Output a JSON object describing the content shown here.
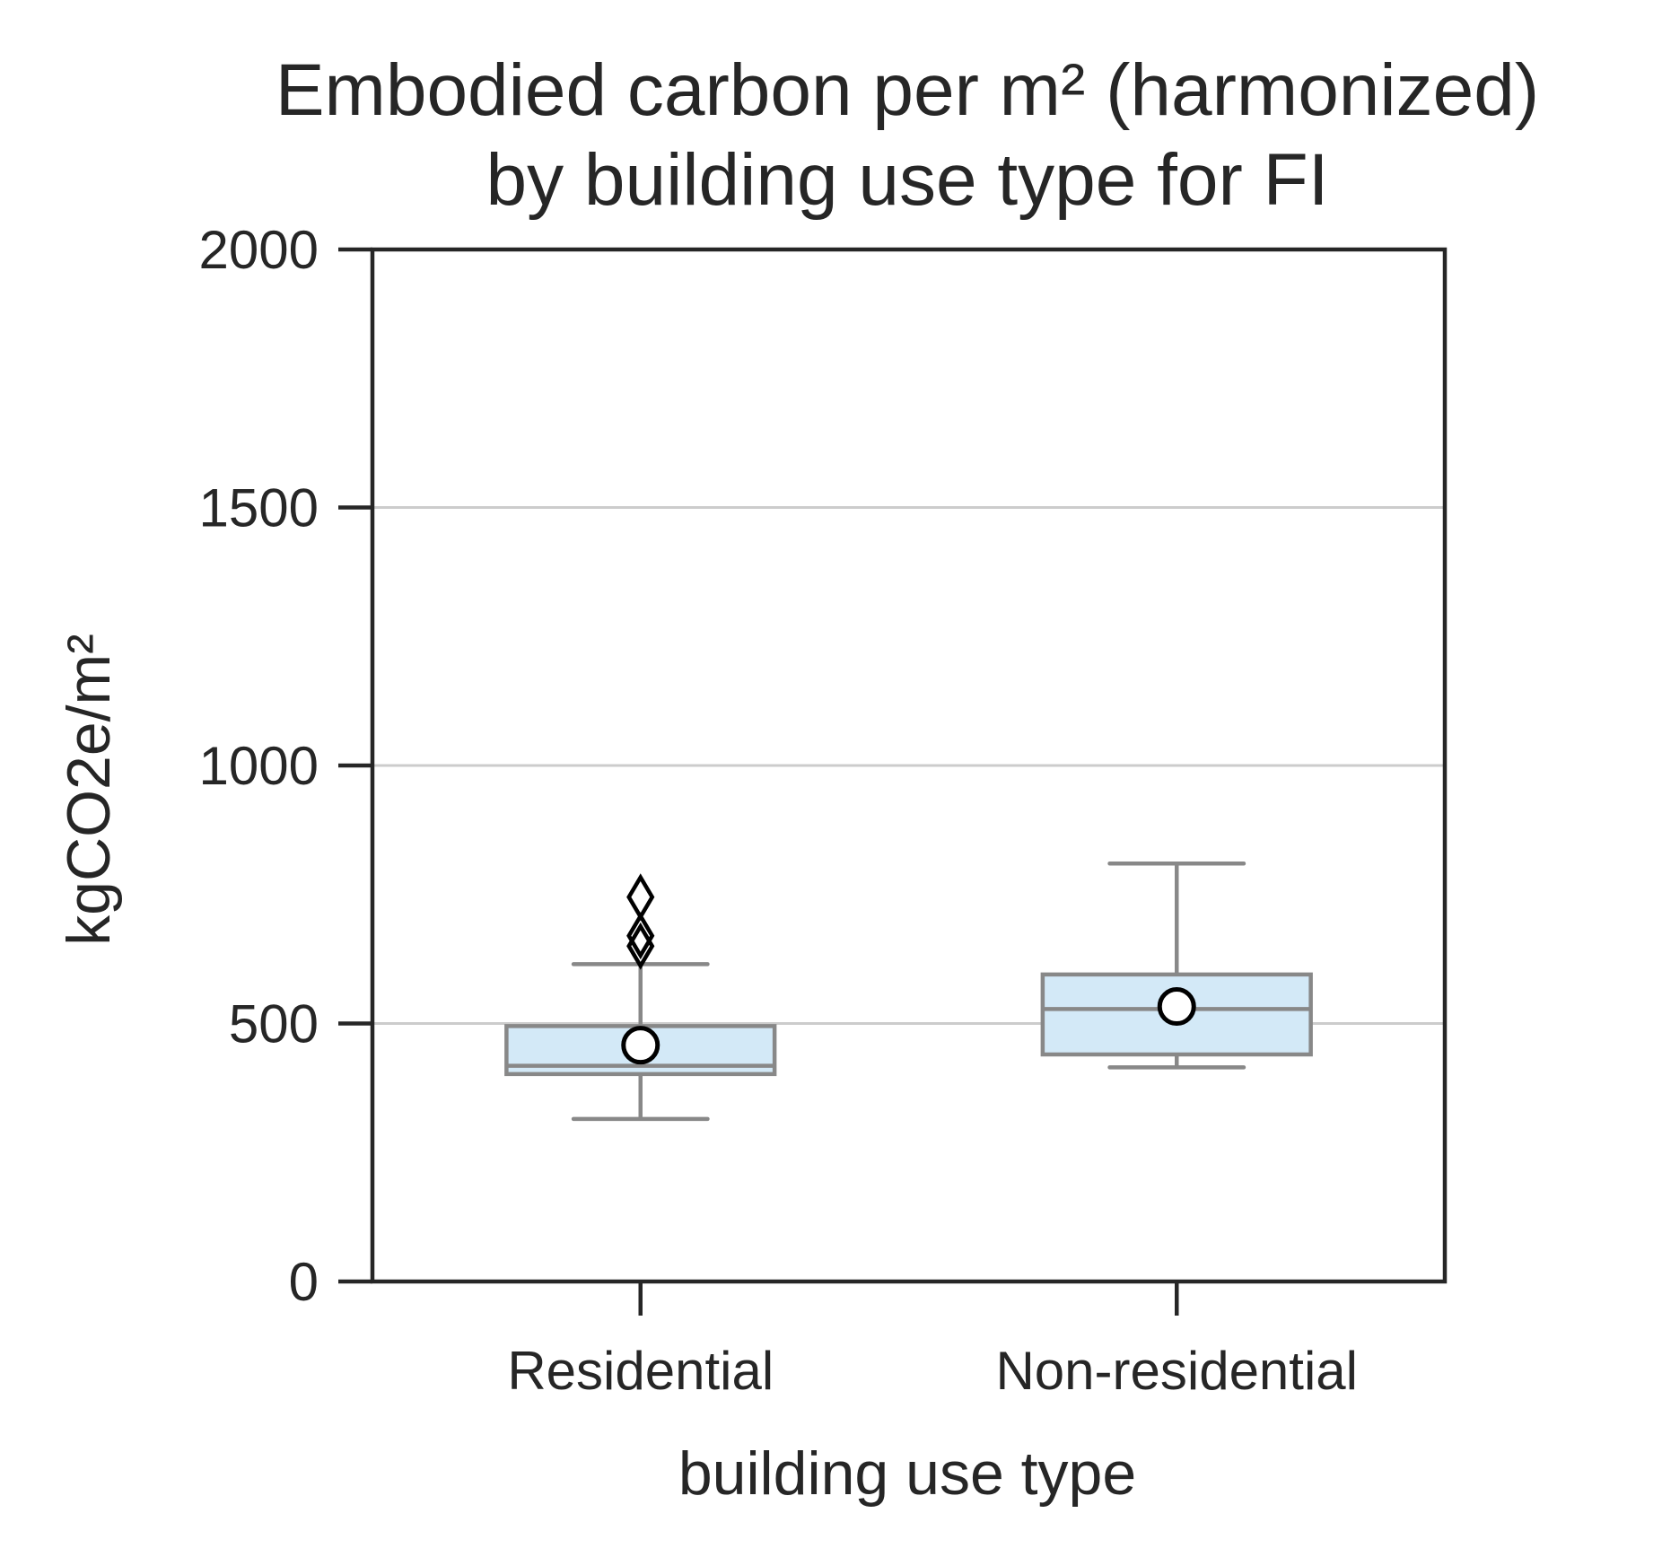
{
  "chart_data": {
    "type": "box",
    "title_lines": [
      "Embodied carbon per m² (harmonized)",
      "by building use type for FI"
    ],
    "xlabel": "building use type",
    "ylabel": "kgCO2e/m²",
    "ylim": [
      0,
      2000
    ],
    "yticks": [
      0,
      500,
      1000,
      1500,
      2000
    ],
    "grid": "horizontal",
    "categories": [
      "Residential",
      "Non-residential"
    ],
    "boxes": [
      {
        "category": "Residential",
        "whisker_low": 315,
        "q1": 402,
        "median": 418,
        "q3": 495,
        "whisker_high": 615,
        "mean": 458,
        "outliers": [
          650,
          670,
          745
        ]
      },
      {
        "category": "Non-residential",
        "whisker_low": 415,
        "q1": 440,
        "median": 528,
        "q3": 595,
        "whisker_high": 810,
        "mean": 533,
        "outliers": []
      }
    ],
    "colors": {
      "box_fill": "#d3e9f7",
      "box_edge": "#888888",
      "grid": "#cccccc",
      "axes": "#262626",
      "mean_marker_fill": "#ffffff",
      "mean_marker_edge": "#000000",
      "outlier_edge": "#000000"
    }
  }
}
